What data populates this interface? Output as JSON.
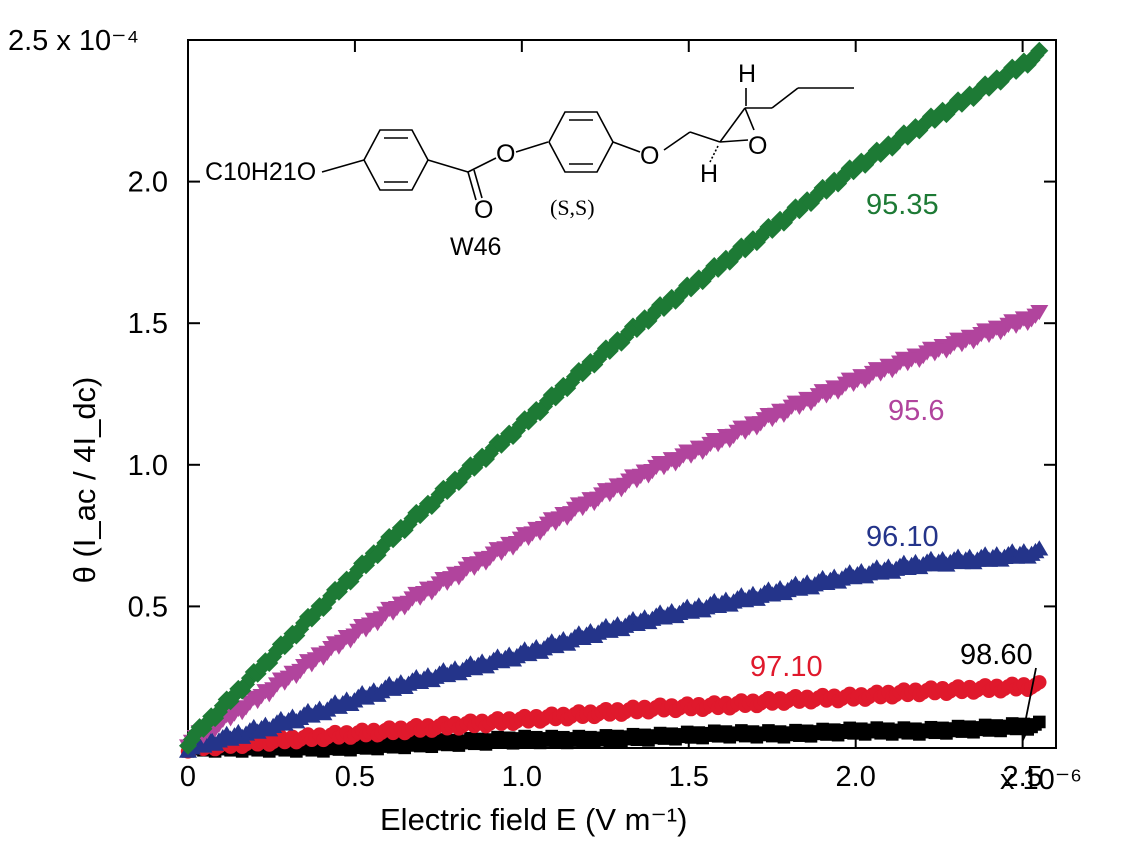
{
  "chart_data": {
    "type": "scatter",
    "xlabel": "Electric field E  (V m⁻¹)",
    "ylabel": "θ  (I_ac / 4I_dc)",
    "x_multiplier": "x 10⁻⁶",
    "y_multiplier": "2.5 x 10⁻⁴",
    "xlim": [
      0,
      2.6
    ],
    "ylim": [
      0,
      2.5
    ],
    "xticks": [
      0,
      0.5,
      1.0,
      1.5,
      2.0,
      2.5
    ],
    "xtick_labels": [
      "0",
      "0.5",
      "1.0",
      "1.5",
      "2.0",
      "2.5"
    ],
    "yticks": [
      0.5,
      1.0,
      1.5,
      2.0
    ],
    "ytick_labels": [
      "0.5",
      "1.0",
      "1.5",
      "2.0"
    ],
    "grid": false,
    "series": [
      {
        "name": "95.35",
        "color": "#1d7a35",
        "marker": "diamond",
        "x": [
          0.0,
          0.2,
          0.4,
          0.6,
          0.8,
          1.0,
          1.2,
          1.4,
          1.6,
          1.8,
          2.0,
          2.2,
          2.4,
          2.55
        ],
        "y": [
          0.02,
          0.26,
          0.5,
          0.73,
          0.94,
          1.14,
          1.35,
          1.54,
          1.71,
          1.88,
          2.05,
          2.2,
          2.34,
          2.45
        ]
      },
      {
        "name": "95.6",
        "color": "#b1449d",
        "marker": "triangle-down",
        "x": [
          0.0,
          0.2,
          0.4,
          0.6,
          0.8,
          1.0,
          1.2,
          1.4,
          1.6,
          1.8,
          2.0,
          2.2,
          2.4,
          2.55
        ],
        "y": [
          0.02,
          0.17,
          0.33,
          0.48,
          0.61,
          0.74,
          0.87,
          0.99,
          1.09,
          1.2,
          1.3,
          1.39,
          1.47,
          1.53
        ]
      },
      {
        "name": "96.10",
        "color": "#24348a",
        "marker": "triangle-up",
        "x": [
          0.0,
          0.2,
          0.4,
          0.6,
          0.8,
          1.0,
          1.2,
          1.4,
          1.6,
          1.8,
          2.0,
          2.2,
          2.4,
          2.55
        ],
        "y": [
          0.0,
          0.06,
          0.13,
          0.21,
          0.27,
          0.33,
          0.4,
          0.46,
          0.51,
          0.56,
          0.61,
          0.65,
          0.67,
          0.69
        ]
      },
      {
        "name": "97.10",
        "color": "#e0192c",
        "marker": "circle",
        "x": [
          0.0,
          0.2,
          0.4,
          0.6,
          0.8,
          1.0,
          1.2,
          1.4,
          1.6,
          1.8,
          2.0,
          2.2,
          2.4,
          2.55
        ],
        "y": [
          0.0,
          0.02,
          0.04,
          0.06,
          0.08,
          0.1,
          0.12,
          0.14,
          0.15,
          0.17,
          0.18,
          0.2,
          0.21,
          0.22
        ]
      },
      {
        "name": "98.60",
        "color": "#000000",
        "marker": "square",
        "x": [
          0.0,
          0.2,
          0.4,
          0.6,
          0.8,
          1.0,
          1.2,
          1.4,
          1.6,
          1.8,
          2.0,
          2.2,
          2.4,
          2.55
        ],
        "y": [
          0.0,
          0.0,
          0.0,
          0.01,
          0.02,
          0.03,
          0.03,
          0.04,
          0.05,
          0.05,
          0.06,
          0.06,
          0.07,
          0.08
        ]
      }
    ],
    "annotations": {
      "molecule_name": "W46",
      "stereo": "(S,S)",
      "formula_prefix": "C10H21O"
    }
  }
}
